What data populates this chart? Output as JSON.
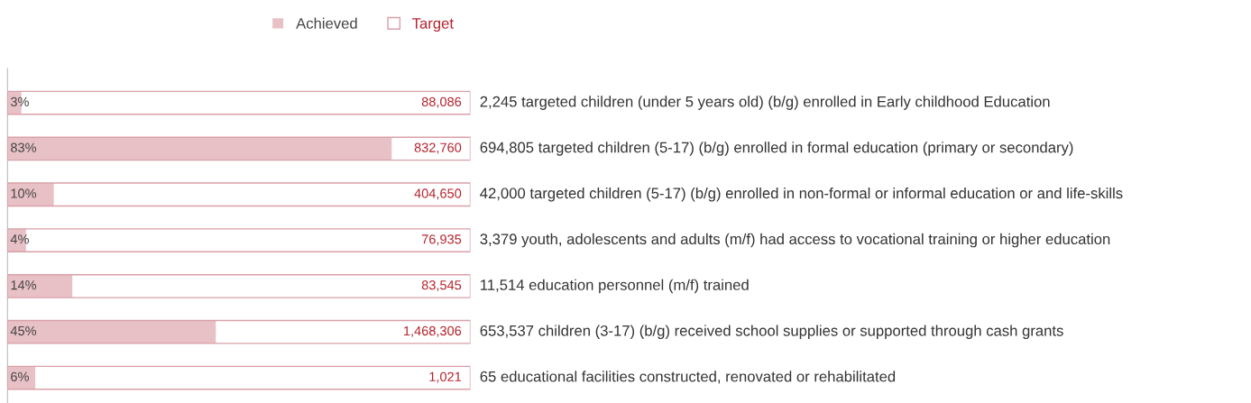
{
  "chart_data": {
    "type": "bar",
    "orientation": "horizontal",
    "categories": [
      "2,245 targeted children (under 5 years old) (b/g) enrolled in Early childhood Education",
      "694,805 targeted children (5-17) (b/g) enrolled in formal education (primary or secondary)",
      "42,000 targeted children (5-17) (b/g) enrolled in non-formal or informal education or and life-skills",
      "3,379 youth, adolescents and adults (m/f) had access to vocational training or higher education",
      "11,514 education personnel (m/f) trained",
      "653,537 children (3-17) (b/g) received school supplies or supported through cash grants",
      "65 educational facilities constructed, renovated or rehabilitated"
    ],
    "series": [
      {
        "name": "Target",
        "color": "#d9a0a8",
        "values": [
          100,
          100,
          100,
          100,
          100,
          100,
          100
        ]
      },
      {
        "name": "Achieved",
        "color": "#e8c1c6",
        "values": [
          3,
          83,
          10,
          4,
          14,
          45,
          6
        ],
        "value_labels": [
          "3%",
          "83%",
          "10%",
          "4%",
          "14%",
          "45%",
          "6%"
        ]
      }
    ],
    "annotations": [
      "88,086",
      "832,760",
      "404,650",
      "76,935",
      "83,545",
      "1,468,306",
      "1,021"
    ],
    "xlim": [
      0,
      100
    ],
    "legend": "top"
  }
}
